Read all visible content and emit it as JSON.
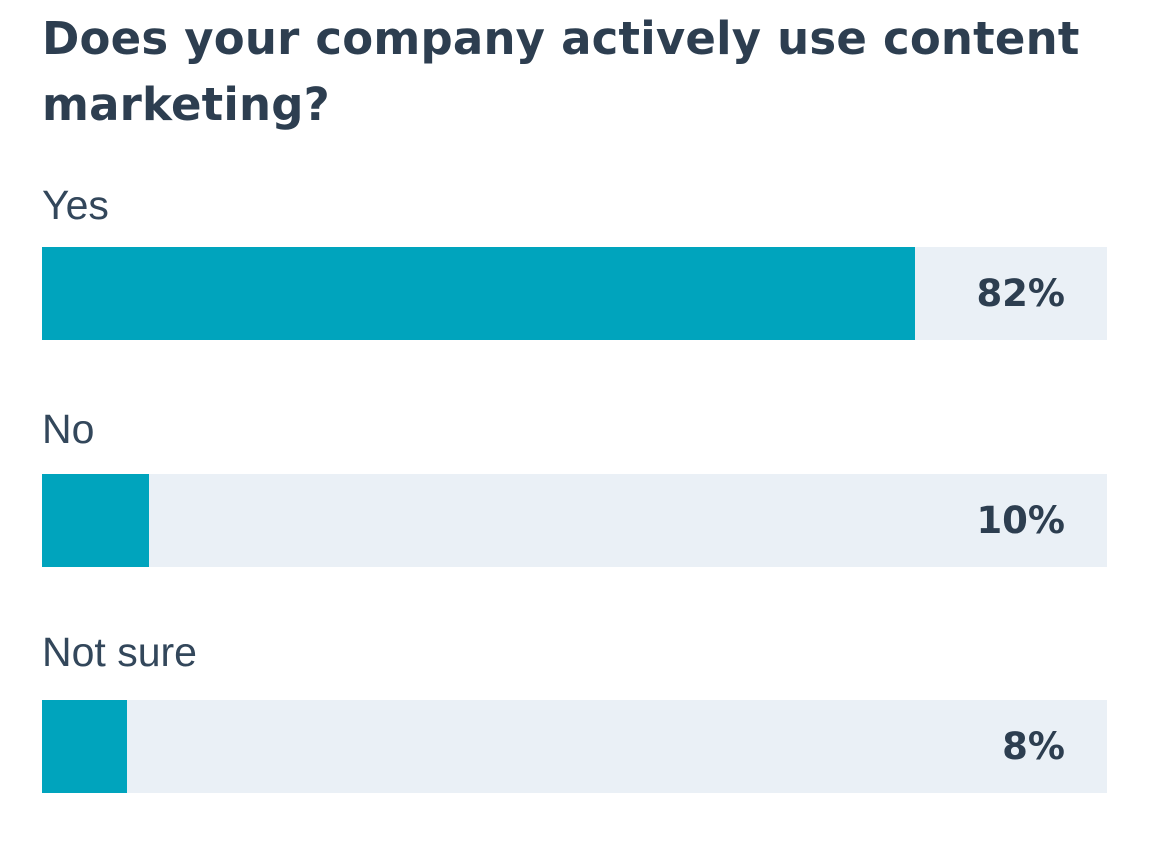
{
  "chart_data": {
    "type": "bar",
    "orientation": "horizontal",
    "title": "Does your company actively use content marketing?",
    "categories": [
      "Yes",
      "No",
      "Not sure"
    ],
    "values": [
      82,
      10,
      8
    ],
    "value_labels": [
      "82%",
      "10%",
      "8%"
    ],
    "unit": "%",
    "xlim": [
      0,
      100
    ],
    "grid": false,
    "legend": "none"
  },
  "colors": {
    "bar_fill": "#00a4bd",
    "bar_track": "#eaf0f6",
    "title_text": "#2d3e50",
    "label_text": "#33475b"
  }
}
